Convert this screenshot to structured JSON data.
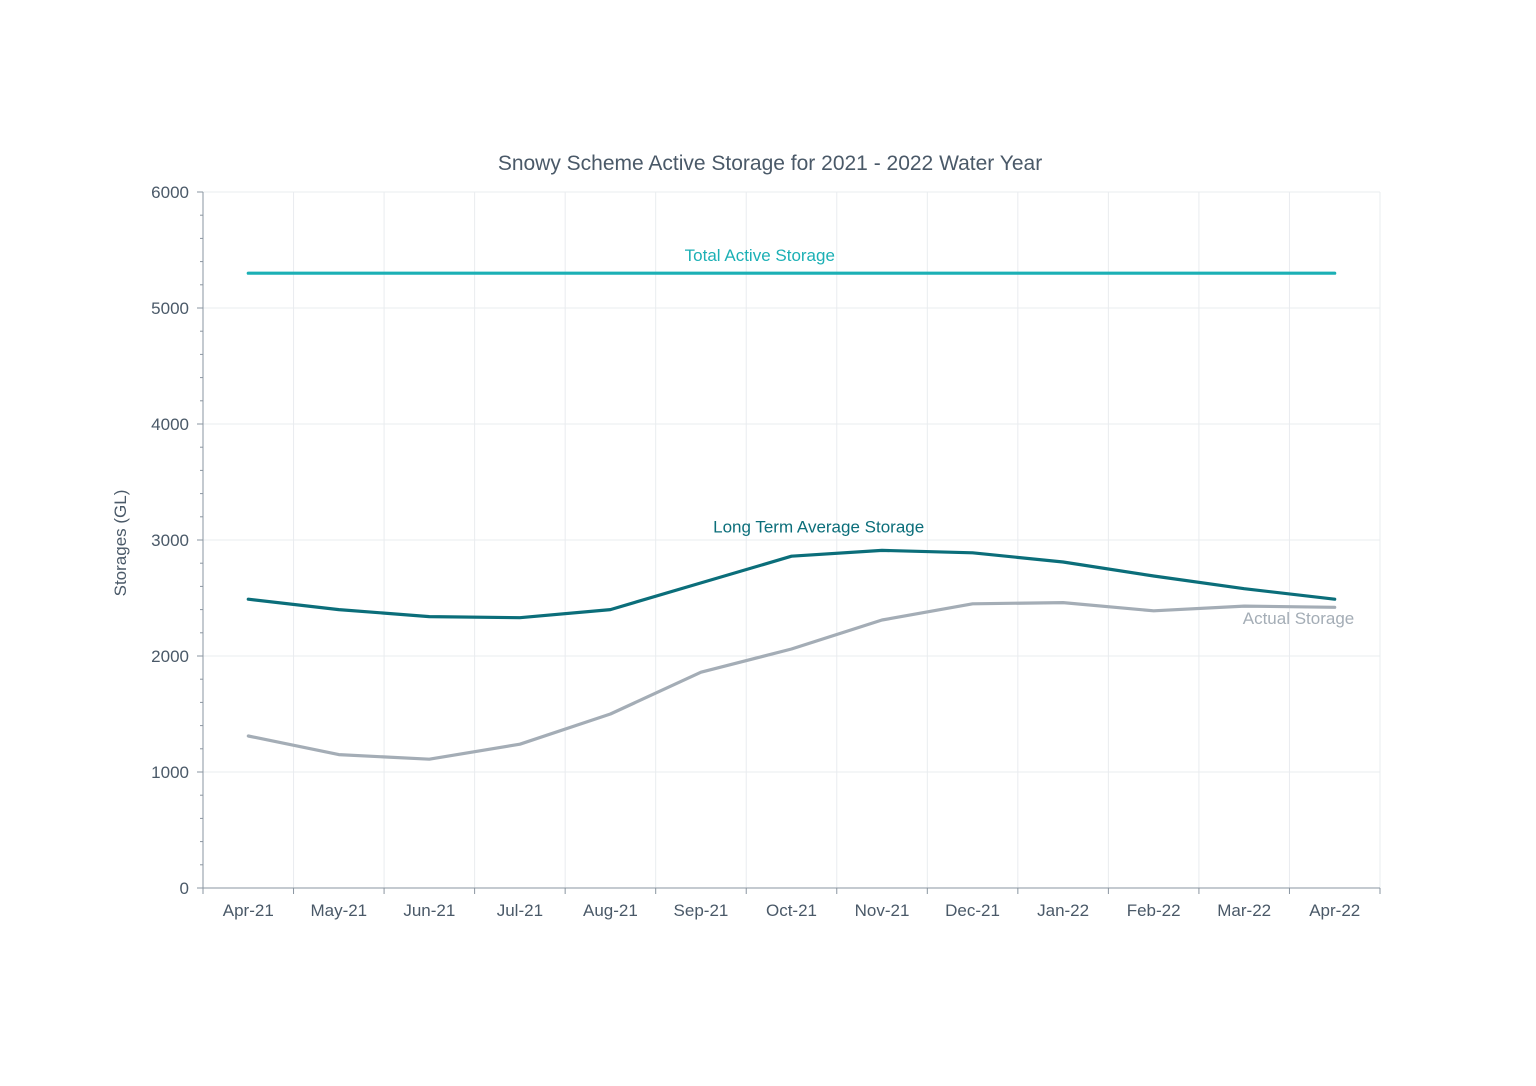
{
  "chart_data": {
    "type": "line",
    "title": "Snowy Scheme Active Storage for 2021 - 2022 Water Year",
    "xlabel": "",
    "ylabel": "Storages (GL)",
    "ylim": [
      0,
      6000
    ],
    "yticks": [
      0,
      1000,
      2000,
      3000,
      4000,
      5000,
      6000
    ],
    "grid": true,
    "categories": [
      "Apr-21",
      "May-21",
      "Jun-21",
      "Jul-21",
      "Aug-21",
      "Sep-21",
      "Oct-21",
      "Nov-21",
      "Dec-21",
      "Jan-22",
      "Feb-22",
      "Mar-22",
      "Apr-22"
    ],
    "series": [
      {
        "name": "Total Active Storage",
        "color": "#1cb0b5",
        "values": [
          5300,
          5300,
          5300,
          5300,
          5300,
          5300,
          5300,
          5300,
          5300,
          5300,
          5300,
          5300,
          5300
        ]
      },
      {
        "name": "Long Term Average Storage",
        "color": "#0b6e7a",
        "values": [
          2490,
          2400,
          2340,
          2330,
          2400,
          2630,
          2860,
          2910,
          2890,
          2810,
          2690,
          2580,
          2490
        ]
      },
      {
        "name": "Actual Storage",
        "color": "#a4adb6",
        "values": [
          1310,
          1150,
          1110,
          1240,
          1500,
          1860,
          2060,
          2310,
          2450,
          2460,
          2390,
          2430,
          2420
        ]
      }
    ]
  }
}
